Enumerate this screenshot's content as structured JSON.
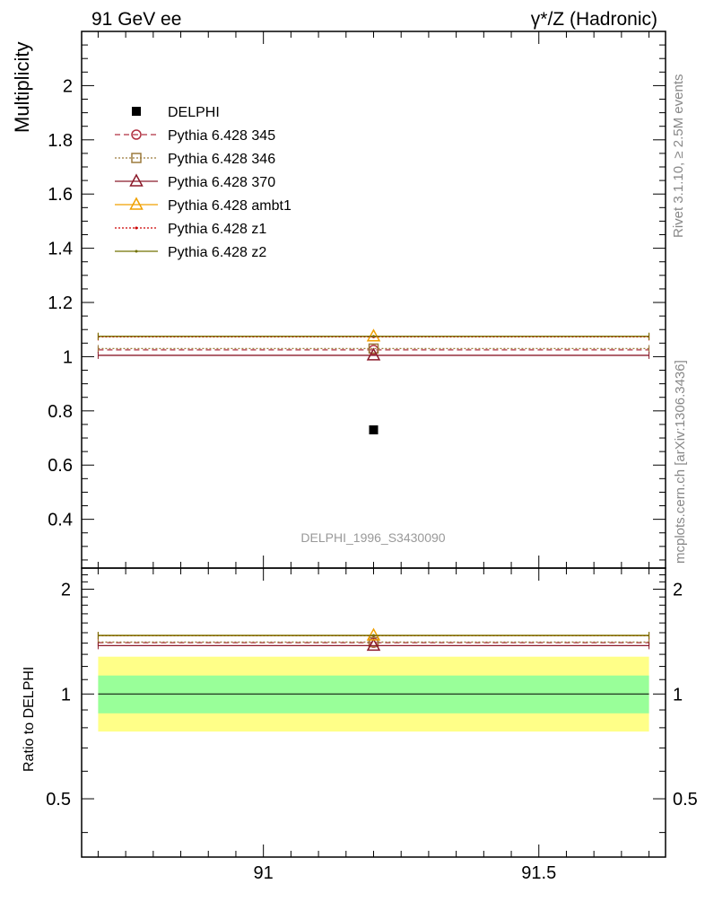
{
  "header": {
    "left": "91 GeV ee",
    "right": "γ*/Z (Hadronic)"
  },
  "side_labels": {
    "rivet": "Rivet 3.1.10, ≥ 2.5M events",
    "mcplots": "mcplots.cern.ch [arXiv:1306.3436]"
  },
  "watermark": "DELPHI_1996_S3430090",
  "colors": {
    "delphi": "#000000",
    "p345": "#b03040",
    "p346": "#9c7a3c",
    "p370": "#8b1a2a",
    "ambt1": "#f0a000",
    "z1": "#cc0000",
    "z2": "#707000",
    "band_outer": "#ffff88",
    "band_inner": "#99ff99"
  },
  "chart_data": [
    {
      "type": "line",
      "panel": "main",
      "ylabel": "Multiplicity",
      "xlim": [
        90.67,
        91.73
      ],
      "ylim": [
        0.22,
        2.2
      ],
      "yticks": [
        0.4,
        0.6,
        0.8,
        1,
        1.2,
        1.4,
        1.6,
        1.8,
        2
      ],
      "ytick_labels": [
        "0.4",
        "0.6",
        "0.8",
        "1",
        "1.2",
        "1.4",
        "1.6",
        "1.8",
        "2"
      ],
      "legend_position": "top-left",
      "data_point": {
        "name": "DELPHI",
        "x": 91.2,
        "y": 0.73
      },
      "series": [
        {
          "name": "Pythia 6.428 345",
          "key": "p345",
          "style": "dashed",
          "marker": "circle",
          "x": [
            90.7,
            91.7
          ],
          "y": 1.025
        },
        {
          "name": "Pythia 6.428 346",
          "key": "p346",
          "style": "dotted",
          "marker": "square",
          "x": [
            90.7,
            91.7
          ],
          "y": 1.03
        },
        {
          "name": "Pythia 6.428 370",
          "key": "p370",
          "style": "solid",
          "marker": "triangle",
          "x": [
            90.7,
            91.7
          ],
          "y": 1.005
        },
        {
          "name": "Pythia 6.428 ambt1",
          "key": "ambt1",
          "style": "solid",
          "marker": "triangle",
          "x": [
            90.7,
            91.7
          ],
          "y": 1.075
        },
        {
          "name": "Pythia 6.428 z1",
          "key": "z1",
          "style": "dotted",
          "marker": "dot",
          "x": [
            90.7,
            91.7
          ],
          "y": 1.073
        },
        {
          "name": "Pythia 6.428 z2",
          "key": "z2",
          "style": "solid",
          "marker": "dot",
          "x": [
            90.7,
            91.7
          ],
          "y": 1.075
        }
      ]
    },
    {
      "type": "line",
      "panel": "ratio",
      "ylabel": "Ratio to DELPHI",
      "xlim": [
        90.67,
        91.73
      ],
      "ylim": [
        0.34,
        2.3
      ],
      "log_y": true,
      "xticks": [
        91,
        91.5
      ],
      "xtick_labels": [
        "91",
        "91.5"
      ],
      "yticks": [
        0.5,
        1,
        2
      ],
      "ytick_labels": [
        "0.5",
        "1",
        "2"
      ],
      "bands": {
        "inner": [
          0.88,
          1.13
        ],
        "outer": [
          0.78,
          1.28
        ]
      },
      "series": [
        {
          "name": "Pythia 6.428 345",
          "key": "p345",
          "y": 1.404
        },
        {
          "name": "Pythia 6.428 346",
          "key": "p346",
          "y": 1.41
        },
        {
          "name": "Pythia 6.428 370",
          "key": "p370",
          "y": 1.377
        },
        {
          "name": "Pythia 6.428 ambt1",
          "key": "ambt1",
          "y": 1.473
        },
        {
          "name": "Pythia 6.428 z1",
          "key": "z1",
          "y": 1.47
        },
        {
          "name": "Pythia 6.428 z2",
          "key": "z2",
          "y": 1.473
        }
      ]
    }
  ]
}
